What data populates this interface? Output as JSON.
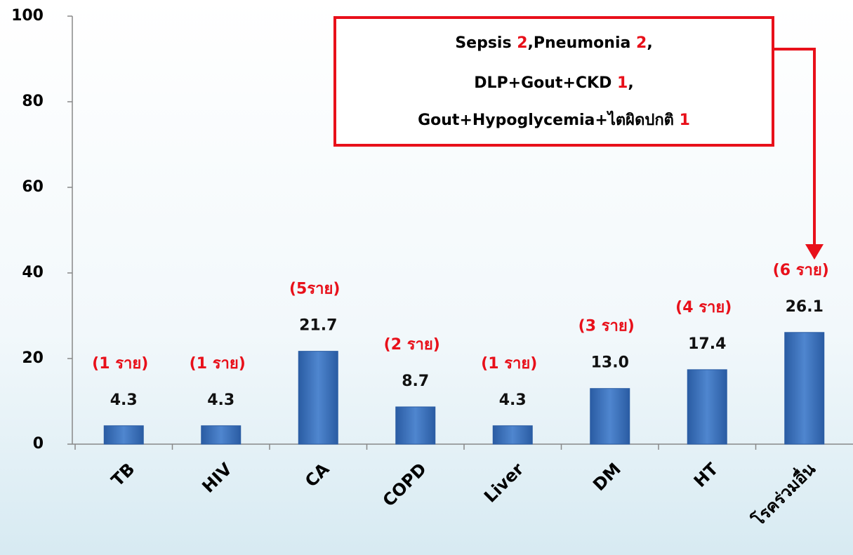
{
  "chart_data": {
    "type": "bar",
    "categories": [
      "TB",
      "HIV",
      "CA",
      "COPD",
      "Liver",
      "DM",
      "HT",
      "โรคร่วมอื่น"
    ],
    "values": [
      4.3,
      4.3,
      21.7,
      8.7,
      4.3,
      13.0,
      17.4,
      26.1
    ],
    "value_labels": [
      "4.3",
      "4.3",
      "21.7",
      "8.7",
      "4.3",
      "13.0",
      "17.4",
      "26.1"
    ],
    "case_labels": [
      "(1 ราย)",
      "(1 ราย)",
      "(5ราย)",
      "(2 ราย)",
      "(1 ราย)",
      "(3 ราย)",
      "(4 ราย)",
      "(6 ราย)"
    ],
    "color": "#3a6fb8",
    "ylim": [
      0,
      100
    ],
    "yticks": [
      0,
      20,
      40,
      60,
      80,
      100
    ],
    "annotation": [
      [
        {
          "text": "Sepsis ",
          "color": "#000000"
        },
        {
          "text": "2",
          "color": "#e8101a"
        },
        {
          "text": ",Pneumonia ",
          "color": "#000000"
        },
        {
          "text": "2",
          "color": "#e8101a"
        },
        {
          "text": ",",
          "color": "#000000"
        }
      ],
      [
        {
          "text": "DLP+Gout+CKD ",
          "color": "#000000"
        },
        {
          "text": "1",
          "color": "#e8101a"
        },
        {
          "text": ",",
          "color": "#000000"
        }
      ],
      [
        {
          "text": "Gout+Hypoglycemia+ไตผิดปกติ ",
          "color": "#000000"
        },
        {
          "text": "1",
          "color": "#e8101a"
        }
      ]
    ]
  }
}
